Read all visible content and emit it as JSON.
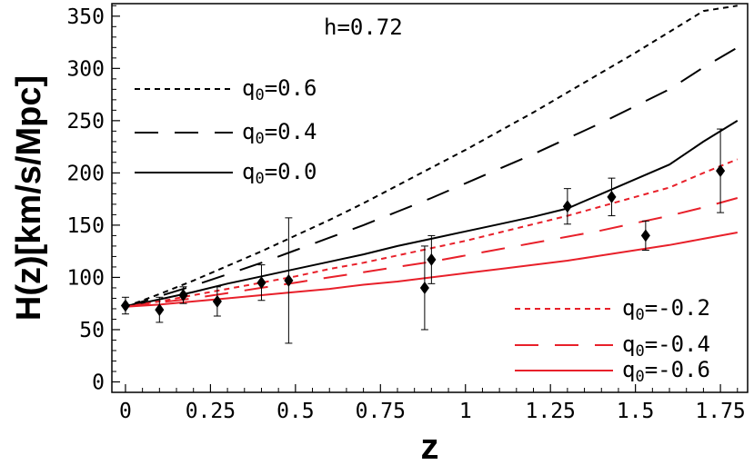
{
  "chart_data": {
    "type": "line",
    "title": "",
    "xlabel": "z",
    "ylabel": "H(z)[km/s/Mpc]",
    "xlim": [
      -0.04,
      1.83
    ],
    "ylim": [
      -10,
      362
    ],
    "x_ticks": [
      {
        "value": 0,
        "label": "0"
      },
      {
        "value": 0.25,
        "label": "0.25"
      },
      {
        "value": 0.5,
        "label": "0.5"
      },
      {
        "value": 0.75,
        "label": "0.75"
      },
      {
        "value": 1,
        "label": "1"
      },
      {
        "value": 1.25,
        "label": "1.25"
      },
      {
        "value": 1.5,
        "label": "1.5"
      },
      {
        "value": 1.75,
        "label": "1.75"
      }
    ],
    "y_ticks": [
      {
        "value": 0,
        "label": "0"
      },
      {
        "value": 50,
        "label": "50"
      },
      {
        "value": 100,
        "label": "100"
      },
      {
        "value": 150,
        "label": "150"
      },
      {
        "value": 200,
        "label": "200"
      },
      {
        "value": 250,
        "label": "250"
      },
      {
        "value": 300,
        "label": "300"
      },
      {
        "value": 350,
        "label": "350"
      }
    ],
    "grid": false,
    "annotation": "h=0.72",
    "x": [
      0,
      0.1,
      0.2,
      0.3,
      0.4,
      0.5,
      0.6,
      0.7,
      0.8,
      0.9,
      1.0,
      1.1,
      1.2,
      1.3,
      1.4,
      1.5,
      1.6,
      1.7,
      1.8
    ],
    "series": [
      {
        "name_prefix": "q",
        "name_sub": "0",
        "name_value": "=0.6",
        "color": "#000000",
        "dash": "6,5",
        "legend_group": "upper",
        "values": [
          72,
          84,
          97,
          111,
          125,
          140,
          155,
          171,
          188,
          205,
          222,
          240,
          258,
          277,
          296,
          315,
          335,
          355,
          360
        ]
      },
      {
        "name_prefix": "q",
        "name_sub": "0",
        "name_value": "=0.4",
        "color": "#000000",
        "dash": "26,18",
        "legend_group": "upper",
        "values": [
          72,
          82,
          92,
          103,
          114,
          126,
          138,
          150,
          163,
          176,
          190,
          204,
          218,
          233,
          248,
          264,
          280,
          301,
          320
        ]
      },
      {
        "name_prefix": "q",
        "name_sub": "0",
        "name_value": "=0.0",
        "color": "#000000",
        "dash": "",
        "legend_group": "upper",
        "values": [
          72,
          79,
          86,
          94,
          101,
          108,
          115,
          122,
          130,
          137,
          144,
          151,
          158,
          166,
          180,
          194,
          208,
          230,
          250
        ]
      },
      {
        "name_prefix": "q",
        "name_sub": "0",
        "name_value": "=-0.2",
        "color": "#e8202a",
        "dash": "6,5",
        "legend_group": "lower",
        "values": [
          72,
          77,
          83,
          89,
          95,
          101,
          108,
          114,
          121,
          128,
          135,
          143,
          151,
          159,
          168,
          177,
          186,
          200,
          213
        ]
      },
      {
        "name_prefix": "q",
        "name_sub": "0",
        "name_value": "=-0.4",
        "color": "#e8202a",
        "dash": "26,18",
        "legend_group": "lower",
        "values": [
          72,
          76,
          80,
          85,
          90,
          95,
          100,
          105,
          110,
          115,
          121,
          127,
          133,
          139,
          145,
          152,
          159,
          167,
          176
        ]
      },
      {
        "name_prefix": "q",
        "name_sub": "0",
        "name_value": "=-0.6",
        "color": "#e8202a",
        "dash": "",
        "legend_group": "lower",
        "values": [
          72,
          74,
          77,
          80,
          83,
          86,
          89,
          93,
          96,
          100,
          104,
          108,
          112,
          116,
          121,
          126,
          131,
          137,
          143
        ]
      }
    ],
    "observations": {
      "marker": "diamond",
      "color": "#000000",
      "points": [
        {
          "z": 0.0,
          "H": 73,
          "err": 8
        },
        {
          "z": 0.1,
          "H": 69,
          "err": 12
        },
        {
          "z": 0.17,
          "H": 83,
          "err": 8
        },
        {
          "z": 0.27,
          "H": 77,
          "err": 14
        },
        {
          "z": 0.4,
          "H": 95,
          "err": 17
        },
        {
          "z": 0.48,
          "H": 97,
          "err": 60
        },
        {
          "z": 0.88,
          "H": 90,
          "err": 40
        },
        {
          "z": 0.9,
          "H": 117,
          "err": 23
        },
        {
          "z": 1.3,
          "H": 168,
          "err": 17
        },
        {
          "z": 1.43,
          "H": 177,
          "err": 18
        },
        {
          "z": 1.53,
          "H": 140,
          "err": 14
        },
        {
          "z": 1.75,
          "H": 202,
          "err": 40
        }
      ]
    }
  }
}
